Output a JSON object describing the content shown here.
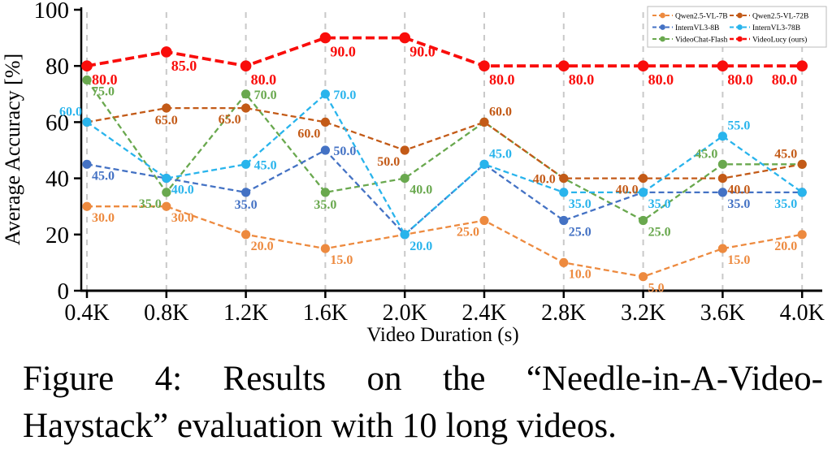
{
  "chart_data": {
    "type": "line",
    "title": "",
    "xlabel": "Video Duration (s)",
    "ylabel": "Average Accuracy [%]",
    "x_categories": [
      "0.4K",
      "0.8K",
      "1.2K",
      "1.6K",
      "2.0K",
      "2.4K",
      "2.8K",
      "3.2K",
      "3.6K",
      "4.0K"
    ],
    "ylim": [
      0,
      100
    ],
    "yticks": [
      0,
      20,
      40,
      60,
      80,
      100
    ],
    "grid": "vertical-dashed",
    "gridline_color": "#c9c9c9",
    "legend_position": "top-right",
    "line_style": "dashed-with-dot-markers",
    "series": [
      {
        "name": "Qwen2.5-VL-7B",
        "color": "#ed8a3f",
        "values": [
          30,
          30,
          20,
          15,
          20,
          25,
          10,
          5,
          15,
          20
        ]
      },
      {
        "name": "Qwen2.5-VL-72B",
        "color": "#c35a17",
        "values": [
          60,
          65,
          65,
          60,
          50,
          60,
          40,
          40,
          40,
          45
        ]
      },
      {
        "name": "InternVL3-8B",
        "color": "#4472c4",
        "values": [
          45,
          40,
          35,
          50,
          20,
          45,
          25,
          35,
          35,
          35
        ]
      },
      {
        "name": "InternVL3-78B",
        "color": "#29b4ec",
        "values": [
          60,
          40,
          45,
          70,
          20,
          45,
          35,
          35,
          55,
          35
        ]
      },
      {
        "name": "VideoChat-Flash",
        "color": "#69a84e",
        "values": [
          75,
          35,
          70,
          35,
          40,
          60,
          40,
          25,
          45,
          45
        ]
      },
      {
        "name": "VideoLucy (ours)",
        "color": "#f90d0b",
        "values": [
          80,
          85,
          80,
          90,
          90,
          80,
          80,
          80,
          80,
          80
        ],
        "emphasis": true
      }
    ]
  },
  "caption": {
    "line1": "Figure 4:  Results on the “Needle-in-A-Video-",
    "line2": "Haystack” evaluation with 10 long videos."
  }
}
